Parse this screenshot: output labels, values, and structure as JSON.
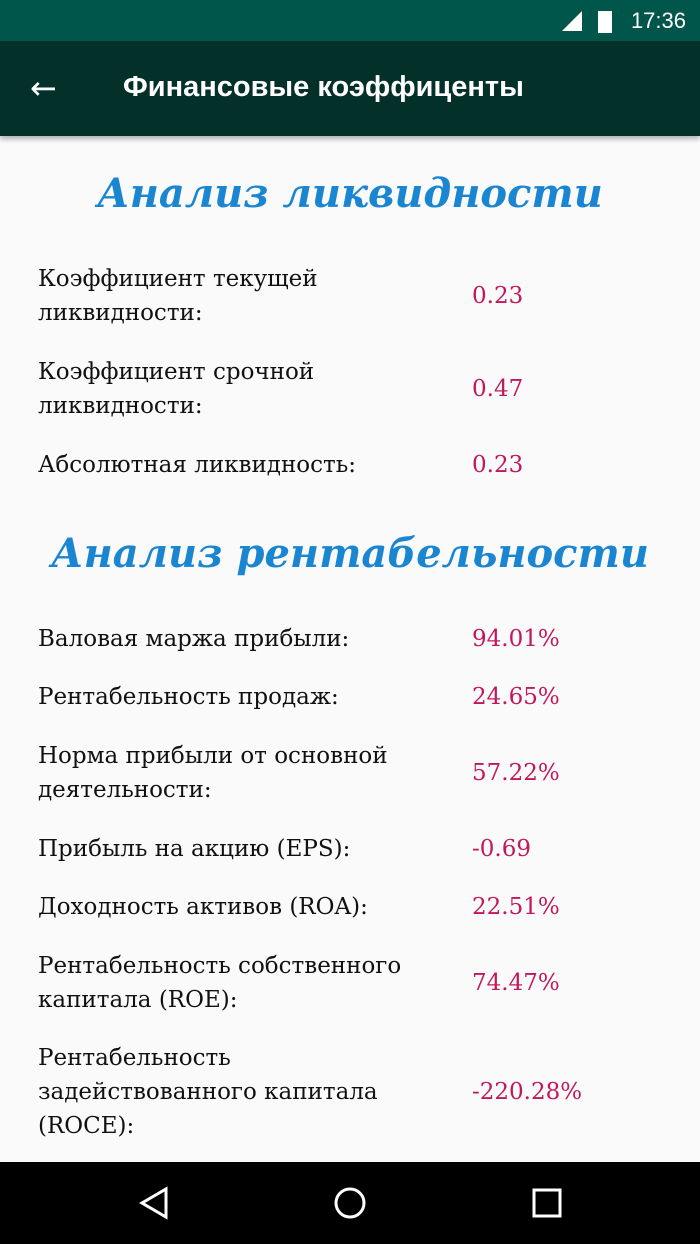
{
  "status": {
    "time": "17:36"
  },
  "appbar": {
    "title": "Финансовые коэффиценты"
  },
  "liquidity": {
    "heading": "Анализ ликвидности",
    "rows": [
      {
        "label": "Коэффициент текущей ликвидности:",
        "value": "0.23"
      },
      {
        "label": "Коэффициент срочной ликвидности:",
        "value": "0.47"
      },
      {
        "label": "Абсолютная ликвидность:",
        "value": "0.23"
      }
    ]
  },
  "profitability": {
    "heading": "Анализ рентабельности",
    "rows": [
      {
        "label": "Валовая маржа прибыли:",
        "value": "94.01%"
      },
      {
        "label": "Рентабельность продаж:",
        "value": "24.65%"
      },
      {
        "label": "Норма прибыли от основной деятельности:",
        "value": "57.22%"
      },
      {
        "label": "Прибыль на акцию (EPS):",
        "value": "-0.69"
      },
      {
        "label": "Доходность активов (ROA):",
        "value": "22.51%"
      },
      {
        "label": "Рентабельность собственного капитала (ROE):",
        "value": "74.47%"
      },
      {
        "label": "Рентабельность задействованного капитала (ROCE):",
        "value": "-220.28%"
      }
    ]
  }
}
